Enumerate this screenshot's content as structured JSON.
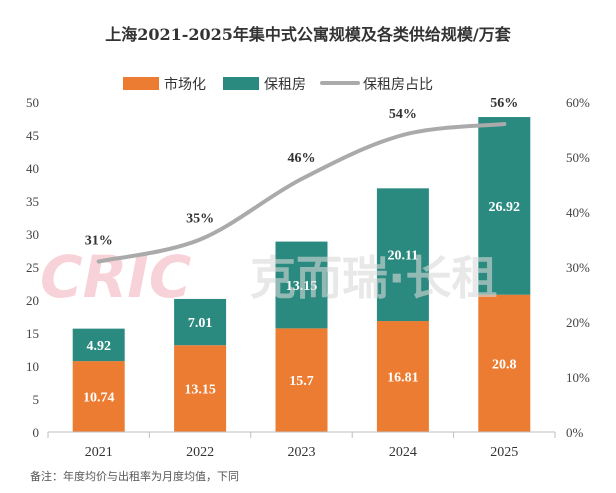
{
  "chart_data": {
    "type": "bar",
    "stacked": true,
    "title": "上海2021-2025年集中式公寓规模及各类供给规模/万套",
    "categories": [
      "2021",
      "2022",
      "2023",
      "2024",
      "2025"
    ],
    "series": [
      {
        "name": "市场化",
        "axis": "left",
        "color": "#ec7c31",
        "values": [
          10.74,
          13.15,
          15.7,
          16.81,
          20.8
        ]
      },
      {
        "name": "保租房",
        "axis": "left",
        "color": "#2a8a7f",
        "values": [
          4.92,
          7.01,
          13.15,
          20.11,
          26.92
        ]
      },
      {
        "name": "保租房占比",
        "type": "line",
        "axis": "right",
        "color": "#aaaaaa",
        "values": [
          31,
          35,
          46,
          54,
          56
        ],
        "labels": [
          "31%",
          "35%",
          "46%",
          "54%",
          "56%"
        ]
      }
    ],
    "y_left": {
      "min": 0,
      "max": 50,
      "step": 5,
      "ticks": [
        "0",
        "5",
        "10",
        "15",
        "20",
        "25",
        "30",
        "35",
        "40",
        "45",
        "50"
      ]
    },
    "y_right": {
      "min": 0,
      "max": 60,
      "step": 10,
      "ticks": [
        "0%",
        "10%",
        "20%",
        "30%",
        "40%",
        "50%",
        "60%"
      ]
    },
    "legend_position": "top-center",
    "grid": false
  },
  "watermark": {
    "logo": "CRIC",
    "text": "克而瑞·长租"
  },
  "note": "备注：年度均价与出租率为月度均值，下同"
}
